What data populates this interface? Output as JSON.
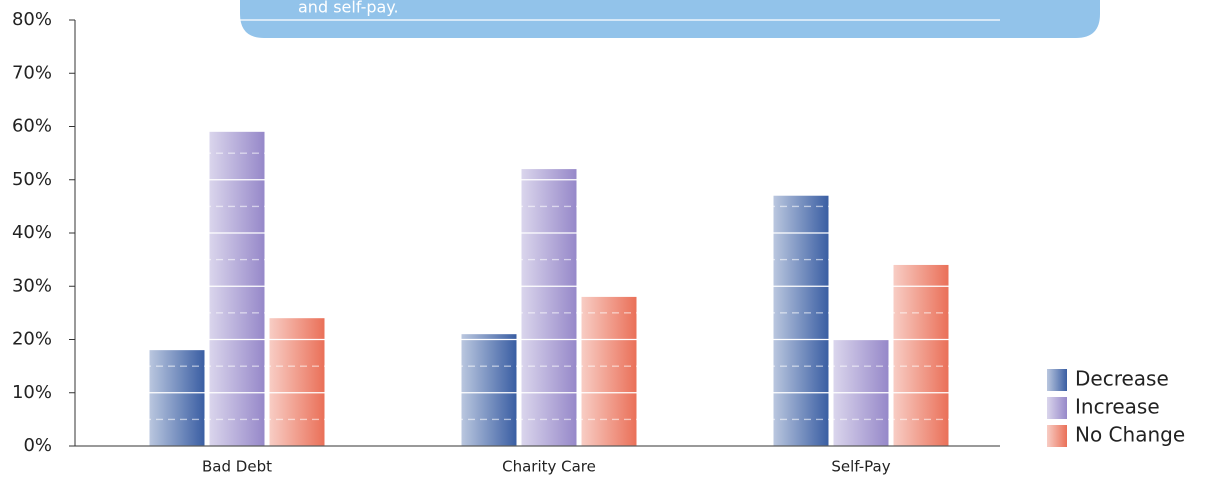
{
  "chart_data": {
    "type": "bar",
    "annotation": "and self-pay.",
    "categories": [
      "Bad Debt",
      "Charity Care",
      "Self-Pay"
    ],
    "series": [
      {
        "name": "Decrease",
        "color": "#3a5ea3",
        "values": [
          18,
          21,
          47
        ]
      },
      {
        "name": "Increase",
        "color": "#9688c9",
        "values": [
          59,
          52,
          20
        ]
      },
      {
        "name": "No Change",
        "color": "#ea7058",
        "values": [
          24,
          28,
          34
        ]
      }
    ],
    "ylim": [
      0,
      80
    ],
    "yticks": [
      {
        "value": 0,
        "label": "0%"
      },
      {
        "value": 10,
        "label": "10%"
      },
      {
        "value": 20,
        "label": "20%"
      },
      {
        "value": 30,
        "label": "30%"
      },
      {
        "value": 40,
        "label": "40%"
      },
      {
        "value": 50,
        "label": "50%"
      },
      {
        "value": 60,
        "label": "60%"
      },
      {
        "value": 70,
        "label": "70%"
      },
      {
        "value": 80,
        "label": "80%"
      }
    ],
    "grid": true,
    "legend": "right"
  }
}
